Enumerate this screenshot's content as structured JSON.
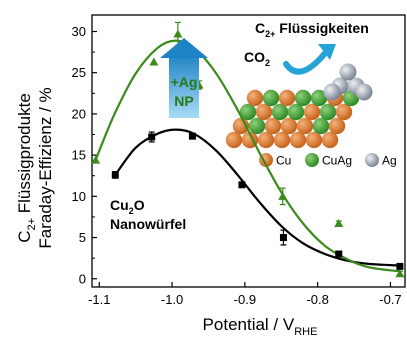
{
  "chart_data": {
    "type": "scatter",
    "xlabel": "Potential / V",
    "xlabel_sub": "RHE",
    "ylabel": "Faraday-Effizienz / %",
    "ylabel_prefix": "C",
    "ylabel_prefix_sub": "2+",
    "ylabel_prefix_rest": " Flüssigprodukte",
    "xlim": [
      -1.11,
      -0.68
    ],
    "ylim": [
      -1,
      32
    ],
    "xticks": [
      -1.1,
      -1.0,
      -0.9,
      -0.8,
      -0.7
    ],
    "xtick_labels": [
      "-1.1",
      "-1.0",
      "-0.9",
      "-0.8",
      "-0.7"
    ],
    "yticks": [
      0,
      5,
      10,
      15,
      20,
      25,
      30
    ],
    "ytick_labels": [
      "0",
      "5",
      "10",
      "15",
      "20",
      "25",
      "30"
    ],
    "grid": false,
    "series": [
      {
        "name": "Cu2O Nanowürfel",
        "color": "#000000",
        "marker": "square",
        "x": [
          -1.078,
          -1.028,
          -0.972,
          -0.904,
          -0.847,
          -0.771,
          -0.687
        ],
        "y": [
          12.6,
          17.2,
          17.3,
          11.4,
          5.0,
          3.0,
          1.5
        ],
        "err": [
          0.4,
          0.6,
          0.3,
          0.3,
          0.9,
          0.3,
          0.3
        ]
      },
      {
        "name": "+Ag NP",
        "color": "#3a8a1c",
        "marker": "triangle",
        "x": [
          -1.105,
          -1.025,
          -0.992,
          -0.963,
          -0.848,
          -0.771,
          -0.687
        ],
        "y": [
          14.4,
          26.3,
          29.7,
          23.5,
          10.0,
          6.7,
          0.6
        ],
        "err": [
          0.0,
          0.0,
          1.4,
          0.5,
          1.0,
          0.3,
          0.3
        ]
      }
    ],
    "fit_curves": [
      {
        "color": "#000000",
        "x": [
          -1.078,
          -1.05,
          -1.02,
          -0.995,
          -0.97,
          -0.94,
          -0.91,
          -0.88,
          -0.85,
          -0.82,
          -0.79,
          -0.76,
          -0.73,
          -0.687
        ],
        "y": [
          12.6,
          15.9,
          17.6,
          18.1,
          17.6,
          15.6,
          12.6,
          9.3,
          6.4,
          4.3,
          3.0,
          2.2,
          1.8,
          1.6
        ]
      },
      {
        "color": "#3a8a1c",
        "x": [
          -1.105,
          -1.08,
          -1.05,
          -1.02,
          -0.995,
          -0.97,
          -0.94,
          -0.91,
          -0.88,
          -0.85,
          -0.82,
          -0.79,
          -0.76,
          -0.73,
          -0.687
        ],
        "y": [
          14.4,
          19.8,
          24.9,
          28.0,
          28.9,
          28.0,
          25.0,
          20.5,
          15.3,
          10.5,
          6.7,
          4.0,
          2.4,
          1.4,
          0.9
        ]
      }
    ]
  },
  "annotations": {
    "arrow_label_line1": "+Ag",
    "arrow_label_line2": "NP",
    "series1_label_main": "Cu",
    "series1_label_sub": "2",
    "series1_label_rest": "O",
    "series1_label_line2": "Nanowürfel",
    "inset_title_main": "C",
    "inset_title_sub": "2+",
    "inset_title_rest": " Flüssigkeiten",
    "inset_co2_main": "CO",
    "inset_co2_sub": "2",
    "legend": [
      {
        "label": "Cu",
        "color": "#d77a2e"
      },
      {
        "label": "CuAg",
        "color": "#4aa23a"
      },
      {
        "label": "Ag",
        "color": "#9aa4b2"
      }
    ]
  }
}
